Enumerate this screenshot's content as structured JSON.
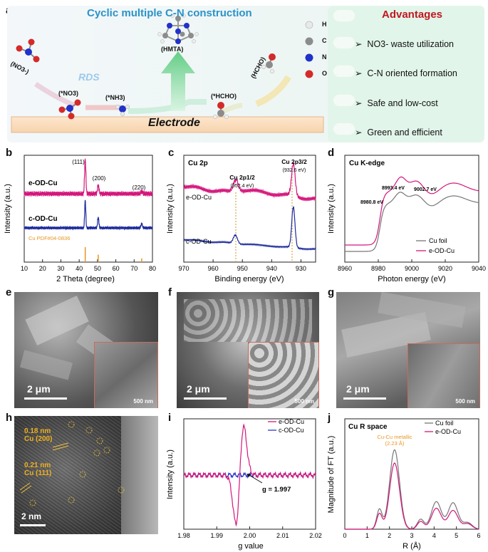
{
  "panel_a": {
    "label": "a",
    "title": "Cyclic multiple C-N construction",
    "rds": "RDS",
    "molecules": {
      "no3_free": "(NO3-)",
      "no3_ads": "(*NO3)",
      "nh3_ads": "(*NH3)",
      "hmta": "(HMTA)",
      "hcho_ads": "(*HCHO)",
      "hcho_free": "(HCHO)"
    },
    "electrode": "Electrode",
    "legend": [
      {
        "sym": "H",
        "color": "#e9e9e9"
      },
      {
        "sym": "C",
        "color": "#8c8c8c"
      },
      {
        "sym": "N",
        "color": "#2131c9"
      },
      {
        "sym": "O",
        "color": "#d42a2a"
      }
    ],
    "advantages_title": "Advantages",
    "advantages": [
      "NO3- waste utilization",
      "C-N oriented formation",
      "Safe and low-cost",
      "Green and efficient"
    ]
  },
  "panel_labels": {
    "b": "b",
    "c": "c",
    "d": "d",
    "e": "e",
    "f": "f",
    "g": "g",
    "h": "h",
    "i": "i",
    "j": "j"
  },
  "scale_bars": {
    "e_main": "2 μm",
    "e_inset": "500 nm",
    "f_main": "2 μm",
    "f_inset": "500 nm",
    "g_main": "2 μm",
    "g_inset": "500 nm",
    "h_main": "2 nm"
  },
  "panel_h": {
    "d1": "0.18 nm",
    "d1_plane": "Cu (200)",
    "d2": "0.21 nm",
    "d2_plane": "Cu (111)"
  },
  "chart_data": [
    {
      "id": "b",
      "type": "line",
      "xlabel": "2 Theta (degree)",
      "ylabel": "Intensity (a.u.)",
      "xlim": [
        10,
        80
      ],
      "xticks": [
        10,
        20,
        30,
        40,
        50,
        60,
        70,
        80
      ],
      "series": [
        {
          "name": "e-OD-Cu",
          "color": "#d4177c"
        },
        {
          "name": "c-OD-Cu",
          "color": "#1d2b9c"
        },
        {
          "name": "Cu PDF#04-0836",
          "color": "#e8961f"
        }
      ],
      "peaks": [
        {
          "x": 43.3,
          "label": "(111)"
        },
        {
          "x": 50.4,
          "label": "(200)"
        },
        {
          "x": 74.1,
          "label": "(220)"
        }
      ],
      "reference_lines": [
        43.3,
        50.4,
        74.1
      ]
    },
    {
      "id": "c",
      "type": "line",
      "title": "Cu 2p",
      "xlabel": "Binding energy (eV)",
      "ylabel": "Intensity (a.u.)",
      "xlim": [
        970,
        925
      ],
      "xticks": [
        970,
        960,
        950,
        940,
        930
      ],
      "series": [
        {
          "name": "e-OD-Cu",
          "color": "#d4177c"
        },
        {
          "name": "c-OD-Cu",
          "color": "#1d2b9c"
        }
      ],
      "peaks": [
        {
          "x": 952.4,
          "label": "Cu 2p1/2",
          "value": "(952.4 eV)"
        },
        {
          "x": 932.6,
          "label": "Cu 2p3/2",
          "value": "(932.6 eV)"
        }
      ]
    },
    {
      "id": "d",
      "type": "line",
      "title": "Cu K-edge",
      "xlabel": "Photon energy (eV)",
      "ylabel": "Intensity (a.u.)",
      "xlim": [
        8960,
        9040
      ],
      "xticks": [
        8960,
        8980,
        9000,
        9020,
        9040
      ],
      "series": [
        {
          "name": "Cu foil",
          "color": "#777777"
        },
        {
          "name": "e-OD-Cu",
          "color": "#d4177c"
        }
      ],
      "annotations": [
        "8980.8 eV",
        "8993.4 eV",
        "9002.7 eV"
      ]
    },
    {
      "id": "i",
      "type": "line",
      "xlabel": "g value",
      "ylabel": "Intensity (a.u.)",
      "xlim": [
        1.98,
        2.02
      ],
      "xticks": [
        "1.98",
        "1.99",
        "2.00",
        "2.01",
        "2.02"
      ],
      "series": [
        {
          "name": "e-OD-Cu",
          "color": "#d4177c"
        },
        {
          "name": "c-OD-Cu",
          "color": "#2a35c8"
        }
      ],
      "annotation": "g = 1.997"
    },
    {
      "id": "j",
      "type": "line",
      "title": "Cu  R space",
      "xlabel": "R (Å)",
      "ylabel": "Magnitude of FT (a.u.)",
      "xlim": [
        0,
        6
      ],
      "xticks": [
        0,
        1,
        2,
        3,
        4,
        5,
        6
      ],
      "series": [
        {
          "name": "Cu foil",
          "color": "#777777"
        },
        {
          "name": "e-OD-Cu",
          "color": "#d4177c"
        }
      ],
      "annotation": "Cu-Cu metallic",
      "annotation_value": "(2.23 Å)"
    }
  ]
}
